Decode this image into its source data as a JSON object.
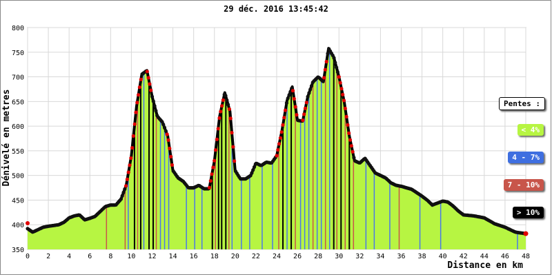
{
  "chart_data": {
    "type": "area",
    "title": "29 déc. 2016 13:45:42",
    "xlabel": "Distance en km",
    "ylabel": "Dénivelé en metres",
    "xlim": [
      0,
      48
    ],
    "ylim": [
      350,
      800
    ],
    "x_ticks": [
      0,
      2,
      4,
      6,
      8,
      10,
      12,
      14,
      16,
      18,
      20,
      22,
      24,
      26,
      28,
      30,
      32,
      34,
      36,
      38,
      40,
      42,
      44,
      46,
      48
    ],
    "y_ticks": [
      350,
      400,
      450,
      500,
      550,
      600,
      650,
      700,
      750,
      800
    ],
    "grid": true,
    "profile": [
      [
        0,
        392
      ],
      [
        0.5,
        385
      ],
      [
        1,
        390
      ],
      [
        1.5,
        395
      ],
      [
        2,
        397
      ],
      [
        3,
        400
      ],
      [
        3.5,
        405
      ],
      [
        4,
        414
      ],
      [
        4.5,
        418
      ],
      [
        5,
        420
      ],
      [
        5.5,
        410
      ],
      [
        6,
        413
      ],
      [
        6.5,
        417
      ],
      [
        7,
        427
      ],
      [
        7.5,
        437
      ],
      [
        8,
        440
      ],
      [
        8.5,
        440
      ],
      [
        9,
        452
      ],
      [
        9.5,
        480
      ],
      [
        10,
        540
      ],
      [
        10.5,
        640
      ],
      [
        11,
        705
      ],
      [
        11.5,
        713
      ],
      [
        12,
        660
      ],
      [
        12.5,
        620
      ],
      [
        13,
        608
      ],
      [
        13.5,
        580
      ],
      [
        14,
        510
      ],
      [
        14.5,
        495
      ],
      [
        15,
        488
      ],
      [
        15.5,
        475
      ],
      [
        16,
        475
      ],
      [
        16.5,
        480
      ],
      [
        17,
        473
      ],
      [
        17.5,
        473
      ],
      [
        18,
        530
      ],
      [
        18.5,
        620
      ],
      [
        19,
        668
      ],
      [
        19.5,
        630
      ],
      [
        20,
        510
      ],
      [
        20.5,
        493
      ],
      [
        21,
        493
      ],
      [
        21.5,
        500
      ],
      [
        22,
        525
      ],
      [
        22.5,
        520
      ],
      [
        23,
        527
      ],
      [
        23.5,
        525
      ],
      [
        24,
        540
      ],
      [
        24.5,
        590
      ],
      [
        25,
        652
      ],
      [
        25.5,
        680
      ],
      [
        26,
        612
      ],
      [
        26.5,
        610
      ],
      [
        27,
        660
      ],
      [
        27.5,
        690
      ],
      [
        28,
        700
      ],
      [
        28.5,
        690
      ],
      [
        29,
        758
      ],
      [
        29.5,
        740
      ],
      [
        30,
        700
      ],
      [
        30.5,
        650
      ],
      [
        31,
        580
      ],
      [
        31.5,
        530
      ],
      [
        32,
        525
      ],
      [
        32.5,
        535
      ],
      [
        33,
        520
      ],
      [
        33.5,
        505
      ],
      [
        34,
        500
      ],
      [
        34.5,
        495
      ],
      [
        35,
        485
      ],
      [
        35.5,
        480
      ],
      [
        36,
        478
      ],
      [
        37,
        472
      ],
      [
        38,
        458
      ],
      [
        38.5,
        450
      ],
      [
        39,
        440
      ],
      [
        40,
        448
      ],
      [
        40.5,
        446
      ],
      [
        41,
        438
      ],
      [
        41.5,
        428
      ],
      [
        42,
        420
      ],
      [
        43,
        418
      ],
      [
        44,
        414
      ],
      [
        45,
        402
      ],
      [
        46,
        395
      ],
      [
        47,
        385
      ],
      [
        48,
        382
      ]
    ],
    "stripes": [
      {
        "x": 7.6,
        "c": "red"
      },
      {
        "x": 9.4,
        "c": "red"
      },
      {
        "x": 9.7,
        "c": "blue"
      },
      {
        "x": 10.3,
        "c": "black"
      },
      {
        "x": 10.6,
        "c": "red"
      },
      {
        "x": 10.9,
        "c": "black"
      },
      {
        "x": 11.2,
        "c": "blue"
      },
      {
        "x": 11.7,
        "c": "black"
      },
      {
        "x": 12.1,
        "c": "black"
      },
      {
        "x": 12.4,
        "c": "red"
      },
      {
        "x": 12.8,
        "c": "blue"
      },
      {
        "x": 13.2,
        "c": "blue"
      },
      {
        "x": 13.6,
        "c": "blue"
      },
      {
        "x": 15.3,
        "c": "blue"
      },
      {
        "x": 16.1,
        "c": "blue"
      },
      {
        "x": 16.8,
        "c": "blue"
      },
      {
        "x": 17.8,
        "c": "black"
      },
      {
        "x": 18.1,
        "c": "red"
      },
      {
        "x": 18.4,
        "c": "black"
      },
      {
        "x": 18.7,
        "c": "black"
      },
      {
        "x": 19.1,
        "c": "black"
      },
      {
        "x": 19.4,
        "c": "red"
      },
      {
        "x": 19.7,
        "c": "blue"
      },
      {
        "x": 20.6,
        "c": "blue"
      },
      {
        "x": 21.4,
        "c": "blue"
      },
      {
        "x": 22.6,
        "c": "blue"
      },
      {
        "x": 23.6,
        "c": "blue"
      },
      {
        "x": 24.2,
        "c": "red"
      },
      {
        "x": 24.6,
        "c": "black"
      },
      {
        "x": 25.0,
        "c": "blue"
      },
      {
        "x": 25.4,
        "c": "black"
      },
      {
        "x": 25.8,
        "c": "red"
      },
      {
        "x": 26.3,
        "c": "blue"
      },
      {
        "x": 26.7,
        "c": "blue"
      },
      {
        "x": 27.1,
        "c": "blue"
      },
      {
        "x": 27.5,
        "c": "red"
      },
      {
        "x": 27.9,
        "c": "blue"
      },
      {
        "x": 28.3,
        "c": "blue"
      },
      {
        "x": 28.7,
        "c": "red"
      },
      {
        "x": 29.1,
        "c": "blue"
      },
      {
        "x": 29.5,
        "c": "black"
      },
      {
        "x": 29.8,
        "c": "red"
      },
      {
        "x": 30.2,
        "c": "black"
      },
      {
        "x": 30.6,
        "c": "red"
      },
      {
        "x": 31.0,
        "c": "black"
      },
      {
        "x": 31.4,
        "c": "red"
      },
      {
        "x": 32.6,
        "c": "blue"
      },
      {
        "x": 33.4,
        "c": "blue"
      },
      {
        "x": 34.9,
        "c": "blue"
      },
      {
        "x": 35.8,
        "c": "red"
      },
      {
        "x": 37.8,
        "c": "blue"
      },
      {
        "x": 39.8,
        "c": "blue"
      },
      {
        "x": 47.2,
        "c": "blue"
      }
    ],
    "legend": {
      "title": "Pentes :",
      "items": [
        {
          "label": "< 4%",
          "color": "#b7f542",
          "text": "#ffffff"
        },
        {
          "label": "4 - 7%",
          "color": "#3f6fe0",
          "text": "#ffffff"
        },
        {
          "label": "7 - 10%",
          "color": "#c8554a",
          "text": "#ffffff"
        },
        {
          "label": "> 10%",
          "color": "#000000",
          "text": "#ffffff"
        }
      ],
      "placement": "right"
    },
    "colors": {
      "fill": "#b7f542",
      "outline": "#000000",
      "marker": "#e00000",
      "blue": "#4a78e8",
      "red": "#c8554a",
      "black": "#000000",
      "grid": "#d8d8d8"
    }
  }
}
